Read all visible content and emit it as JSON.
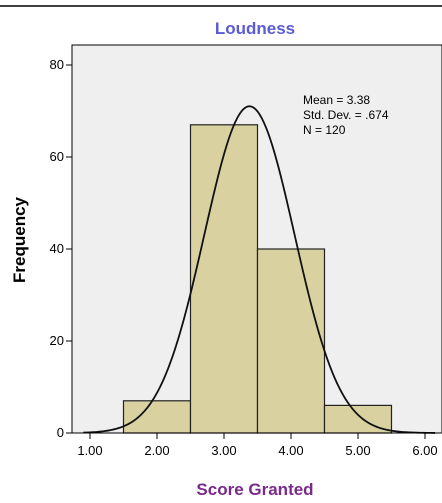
{
  "colors": {
    "title": "#5b5bd6",
    "xlabel": "#7a2a8a",
    "plot_background": "#efefef",
    "bar_fill": "#d9d1a0",
    "bar_stroke": "#222222",
    "curve": "#111111"
  },
  "chart_data": {
    "type": "bar",
    "subtype": "histogram",
    "title": "Loudness",
    "xlabel": "Score Granted",
    "ylabel": "Frequency",
    "xlim": [
      0.7,
      6.2
    ],
    "ylim": [
      0,
      85
    ],
    "x_ticks": [
      "1.00",
      "2.00",
      "3.00",
      "4.00",
      "5.00",
      "6.00"
    ],
    "y_ticks": [
      "0",
      "20",
      "40",
      "60",
      "80"
    ],
    "bins": [
      {
        "start": 1.5,
        "end": 2.5,
        "value": 7
      },
      {
        "start": 2.5,
        "end": 3.5,
        "value": 67
      },
      {
        "start": 3.5,
        "end": 4.5,
        "value": 40
      },
      {
        "start": 4.5,
        "end": 5.5,
        "value": 6
      }
    ],
    "normal_curve": {
      "mean": 3.38,
      "sd": 0.674,
      "n": 120,
      "bin_width": 1
    },
    "stats": [
      "Mean = 3.38",
      "Std. Dev. = .674",
      "N = 120"
    ],
    "grid": false,
    "legend": "none"
  }
}
